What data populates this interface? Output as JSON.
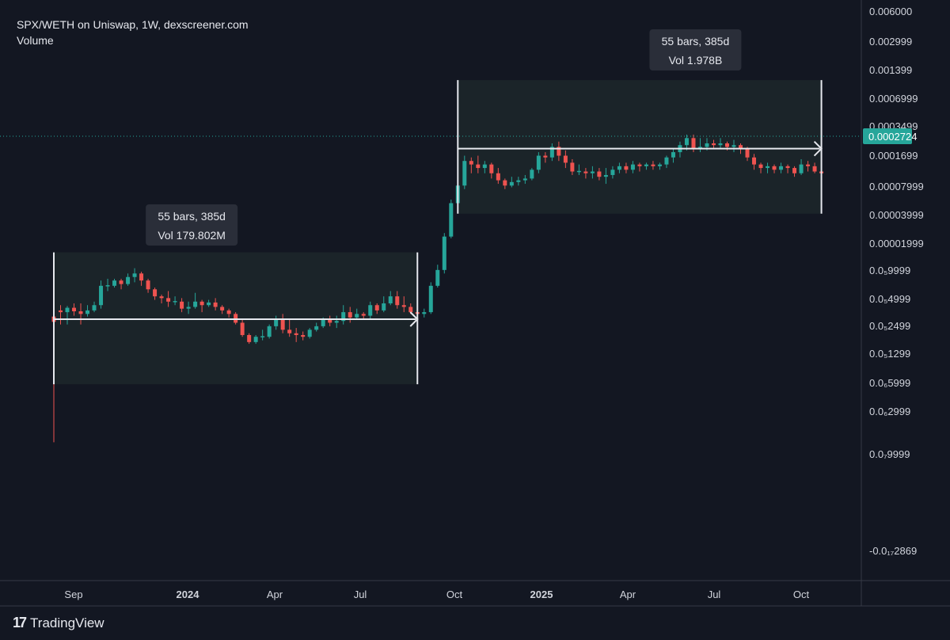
{
  "header": {
    "symbol_line": "SPX/WETH on Uniswap, 1W, dexscreener.com",
    "indicator": "Volume"
  },
  "branding": {
    "logo_text": "TradingView",
    "logo_icon": "tradingview-logo-icon"
  },
  "colors": {
    "background": "#131722",
    "bull": "#26a69a",
    "bear": "#ef5350",
    "price_tag": "#26a69a",
    "measure_fill": "#1b2429",
    "measure_line": "#e6e8ee",
    "tooltip_bg": "#2a2e39"
  },
  "chart_data": {
    "type": "candlestick",
    "x_axis": {
      "labels": [
        "Sep",
        "2024",
        "Apr",
        "Jul",
        "Oct",
        "2025",
        "Apr",
        "Jul",
        "Oct"
      ],
      "bold": [
        "2024",
        "2025"
      ]
    },
    "y_axis": {
      "scale": "log",
      "ticks": [
        "0.006000",
        "0.002999",
        "0.001399",
        "0.0006999",
        "0.0003499",
        "0.0001699",
        "0.00007999",
        "0.00003999",
        "0.00001999",
        "0.0₅9999",
        "0.0₅4999",
        "0.0₅2499",
        "0.0₅1299",
        "0.0₆5999",
        "0.0₆2999",
        "0.0₇9999",
        "-0.0₁₇2869"
      ]
    },
    "last_price": "0.0002724",
    "measurements": [
      {
        "bars_label": "55 bars, 385d",
        "vol_label": "Vol 179.802M"
      },
      {
        "bars_label": "55 bars, 385d",
        "vol_label": "Vol 1.978B"
      }
    ],
    "candles": [
      [
        0.15,
        -0.15,
        0.5,
        -7.0
      ],
      [
        0.5,
        0.4,
        0.8,
        -0.3
      ],
      [
        0.4,
        0.65,
        0.75,
        -0.3
      ],
      [
        0.65,
        0.45,
        0.9,
        0.2
      ],
      [
        0.45,
        0.3,
        0.9,
        -0.3
      ],
      [
        0.3,
        0.5,
        0.8,
        0.15
      ],
      [
        0.5,
        0.8,
        1.0,
        0.4
      ],
      [
        0.8,
        1.9,
        2.2,
        0.6
      ],
      [
        1.9,
        1.9,
        2.3,
        1.6
      ],
      [
        1.9,
        2.2,
        2.3,
        1.8
      ],
      [
        2.2,
        2.0,
        2.3,
        1.7
      ],
      [
        2.0,
        2.4,
        2.6,
        1.9
      ],
      [
        2.4,
        2.6,
        2.9,
        2.1
      ],
      [
        2.6,
        2.2,
        2.7,
        1.9
      ],
      [
        2.2,
        1.7,
        2.3,
        1.5
      ],
      [
        1.7,
        1.3,
        1.8,
        1.1
      ],
      [
        1.3,
        1.2,
        1.4,
        0.9
      ],
      [
        1.2,
        1.0,
        1.6,
        0.7
      ],
      [
        1.0,
        1.0,
        1.3,
        0.8
      ],
      [
        1.0,
        0.6,
        1.2,
        0.4
      ],
      [
        0.6,
        0.7,
        1.0,
        0.3
      ],
      [
        0.7,
        1.0,
        1.5,
        0.6
      ],
      [
        1.0,
        0.8,
        1.1,
        0.4
      ],
      [
        0.8,
        0.95,
        1.1,
        0.7
      ],
      [
        0.95,
        0.7,
        1.2,
        0.5
      ],
      [
        0.7,
        0.5,
        0.8,
        0.3
      ],
      [
        0.5,
        0.3,
        0.6,
        0.1
      ],
      [
        0.3,
        -0.2,
        0.4,
        -0.3
      ],
      [
        -0.2,
        -0.9,
        0.0,
        -1.0
      ],
      [
        -0.9,
        -1.3,
        -0.8,
        -1.4
      ],
      [
        -1.3,
        -1.0,
        -0.9,
        -1.4
      ],
      [
        -1.0,
        -1.0,
        -0.6,
        -1.2
      ],
      [
        -1.0,
        -0.4,
        -0.3,
        -1.1
      ],
      [
        -0.4,
        0.0,
        0.2,
        -0.6
      ],
      [
        0.0,
        -0.6,
        0.3,
        -0.8
      ],
      [
        -0.6,
        -0.8,
        0.0,
        -1.0
      ],
      [
        -0.8,
        -0.9,
        -0.5,
        -1.3
      ],
      [
        -0.9,
        -1.0,
        -0.7,
        -1.2
      ],
      [
        -1.0,
        -0.6,
        -0.5,
        -1.1
      ],
      [
        -0.6,
        -0.4,
        -0.2,
        -0.7
      ],
      [
        -0.4,
        0.0,
        0.1,
        -0.5
      ],
      [
        0.0,
        -0.2,
        0.2,
        -0.4
      ],
      [
        -0.2,
        -0.1,
        0.2,
        -0.5
      ],
      [
        -0.1,
        0.4,
        0.8,
        -0.3
      ],
      [
        0.4,
        0.1,
        0.7,
        -0.2
      ],
      [
        0.1,
        0.3,
        0.6,
        0.0
      ],
      [
        0.3,
        0.2,
        0.4,
        0.0
      ],
      [
        0.2,
        0.8,
        1.0,
        0.0
      ],
      [
        0.8,
        0.5,
        0.9,
        0.3
      ],
      [
        0.5,
        0.9,
        1.3,
        0.4
      ],
      [
        0.9,
        1.3,
        1.6,
        0.8
      ],
      [
        1.3,
        0.8,
        1.6,
        0.6
      ],
      [
        0.8,
        0.7,
        1.3,
        0.4
      ],
      [
        0.7,
        0.4,
        0.9,
        0.3
      ],
      [
        0.4,
        0.3,
        0.8,
        0.1
      ],
      [
        0.3,
        0.4,
        0.6,
        0.1
      ],
      [
        0.4,
        1.9,
        2.1,
        0.3
      ],
      [
        1.9,
        2.8,
        3.1,
        1.8
      ],
      [
        2.8,
        4.7,
        4.9,
        2.6
      ],
      [
        4.7,
        6.6,
        6.8,
        4.6
      ],
      [
        6.6,
        7.6,
        8.2,
        6.4
      ],
      [
        7.6,
        9.0,
        9.3,
        7.4
      ],
      [
        9.0,
        8.8,
        9.2,
        8.3
      ],
      [
        8.8,
        8.6,
        9.3,
        8.3
      ],
      [
        8.6,
        8.8,
        9.0,
        8.3
      ],
      [
        8.8,
        8.3,
        8.9,
        8.0
      ],
      [
        8.3,
        7.9,
        8.6,
        7.7
      ],
      [
        7.9,
        7.6,
        8.0,
        7.4
      ],
      [
        7.6,
        7.8,
        8.1,
        7.5
      ],
      [
        7.8,
        7.9,
        8.1,
        7.6
      ],
      [
        7.9,
        8.0,
        8.2,
        7.7
      ],
      [
        8.0,
        8.5,
        8.6,
        7.9
      ],
      [
        8.5,
        9.3,
        9.5,
        8.3
      ],
      [
        9.3,
        9.2,
        9.5,
        8.9
      ],
      [
        9.2,
        9.8,
        10.0,
        9.0
      ],
      [
        9.8,
        9.3,
        10.1,
        9.0
      ],
      [
        9.3,
        8.9,
        9.6,
        8.6
      ],
      [
        8.9,
        8.4,
        9.1,
        8.2
      ],
      [
        8.4,
        8.4,
        8.8,
        8.2
      ],
      [
        8.4,
        8.3,
        8.6,
        8.0
      ],
      [
        8.3,
        8.4,
        8.7,
        8.0
      ],
      [
        8.4,
        8.1,
        8.6,
        7.9
      ],
      [
        8.1,
        8.2,
        8.6,
        7.7
      ],
      [
        8.2,
        8.5,
        8.7,
        8.0
      ],
      [
        8.5,
        8.7,
        8.9,
        8.3
      ],
      [
        8.7,
        8.5,
        8.9,
        8.3
      ],
      [
        8.5,
        8.8,
        9.0,
        8.3
      ],
      [
        8.8,
        8.7,
        8.9,
        8.4
      ],
      [
        8.7,
        8.8,
        8.9,
        8.5
      ],
      [
        8.8,
        8.7,
        9.0,
        8.5
      ],
      [
        8.7,
        8.8,
        8.9,
        8.5
      ],
      [
        8.8,
        9.2,
        9.3,
        8.6
      ],
      [
        9.2,
        9.5,
        9.7,
        8.9
      ],
      [
        9.5,
        9.9,
        10.1,
        9.2
      ],
      [
        9.9,
        10.3,
        10.5,
        9.6
      ],
      [
        10.3,
        9.7,
        10.5,
        9.5
      ],
      [
        9.7,
        9.8,
        10.3,
        9.5
      ],
      [
        9.8,
        10.0,
        10.3,
        9.6
      ],
      [
        10.0,
        9.9,
        10.2,
        9.7
      ],
      [
        9.9,
        10.0,
        10.3,
        9.7
      ],
      [
        10.0,
        9.8,
        10.1,
        9.6
      ],
      [
        9.8,
        9.9,
        10.2,
        9.5
      ],
      [
        9.9,
        9.7,
        10.0,
        9.4
      ],
      [
        9.7,
        9.2,
        9.8,
        9.0
      ],
      [
        9.2,
        8.8,
        9.4,
        8.5
      ],
      [
        8.8,
        8.6,
        8.9,
        8.3
      ],
      [
        8.6,
        8.7,
        8.9,
        8.3
      ],
      [
        8.7,
        8.5,
        8.8,
        8.3
      ],
      [
        8.5,
        8.7,
        8.9,
        8.3
      ],
      [
        8.7,
        8.6,
        8.8,
        8.3
      ],
      [
        8.6,
        8.3,
        8.7,
        8.1
      ],
      [
        8.3,
        8.8,
        9.1,
        8.2
      ],
      [
        8.8,
        8.7,
        9.0,
        8.4
      ],
      [
        8.7,
        8.4,
        8.9,
        8.3
      ],
      [
        8.4,
        8.3,
        8.6,
        8.1
      ]
    ]
  }
}
